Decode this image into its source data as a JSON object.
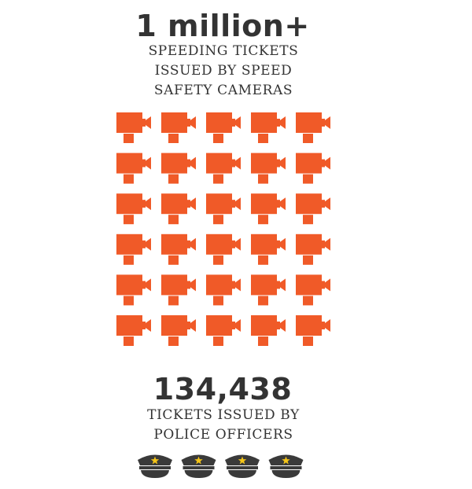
{
  "cameras_stat": {
    "value": "1 million+",
    "caption_lines": [
      "SPEEDING TICKETS",
      "ISSUED BY SPEED",
      "SAFETY CAMERAS"
    ],
    "icon": "speed-camera-icon",
    "icon_count": 30,
    "columns": 5,
    "color": "#f05a28"
  },
  "officers_stat": {
    "value": "134,438",
    "caption_lines": [
      "TICKETS ISSUED BY",
      "POLICE OFFICERS"
    ],
    "icon": "police-hat-icon",
    "icon_count": 4,
    "hat_color": "#3a3a3a",
    "star_color": "#f5c518"
  }
}
